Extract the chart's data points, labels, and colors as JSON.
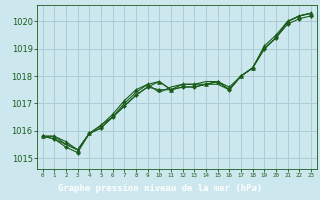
{
  "background_color": "#cce8ee",
  "plot_bg_color": "#cce8ee",
  "grid_color": "#aaccd4",
  "line_color": "#1a5c1a",
  "marker_color": "#1a5c1a",
  "xlabel_bg_color": "#2a7a2a",
  "xlabel_text_color": "#ffffff",
  "title": "Graphe pression niveau de la mer (hPa)",
  "xlim": [
    -0.5,
    23.5
  ],
  "ylim": [
    1014.6,
    1020.6
  ],
  "yticks": [
    1015,
    1016,
    1017,
    1018,
    1019,
    1020
  ],
  "xticks": [
    0,
    1,
    2,
    3,
    4,
    5,
    6,
    7,
    8,
    9,
    10,
    11,
    12,
    13,
    14,
    15,
    16,
    17,
    18,
    19,
    20,
    21,
    22,
    23
  ],
  "series": [
    [
      1015.8,
      1015.8,
      1015.6,
      1015.3,
      1015.9,
      1016.2,
      1016.6,
      1017.1,
      1017.5,
      1017.7,
      1017.8,
      1017.5,
      1017.7,
      1017.7,
      1017.7,
      1017.8,
      1017.6,
      1018.0,
      1018.3,
      1019.1,
      1019.5,
      1020.0,
      1020.2,
      1020.3
    ],
    [
      1015.8,
      1015.7,
      1015.4,
      1015.2,
      1015.9,
      1016.1,
      1016.5,
      1016.9,
      1017.3,
      1017.6,
      1017.5,
      1017.5,
      1017.6,
      1017.6,
      1017.7,
      1017.8,
      1017.5,
      1018.0,
      1018.3,
      1019.0,
      1019.4,
      1019.9,
      1020.1,
      1020.2
    ],
    [
      1015.8,
      1015.8,
      1015.5,
      1015.3,
      1015.9,
      1016.2,
      1016.5,
      1017.0,
      1017.4,
      1017.7,
      1017.4,
      1017.6,
      1017.7,
      1017.7,
      1017.8,
      1017.8,
      1017.5,
      1018.0,
      1018.3,
      1019.0,
      1019.4,
      1020.0,
      1020.2,
      1020.3
    ],
    [
      1015.8,
      1015.7,
      1015.5,
      1015.3,
      1015.9,
      1016.1,
      1016.5,
      1016.9,
      1017.3,
      1017.6,
      1017.8,
      1017.5,
      1017.6,
      1017.6,
      1017.7,
      1017.7,
      1017.5,
      1018.0,
      1018.3,
      1019.0,
      1019.4,
      1020.0,
      1020.2,
      1020.3
    ]
  ],
  "triangle_series_idx": 0,
  "diamond_series_idx": 1
}
